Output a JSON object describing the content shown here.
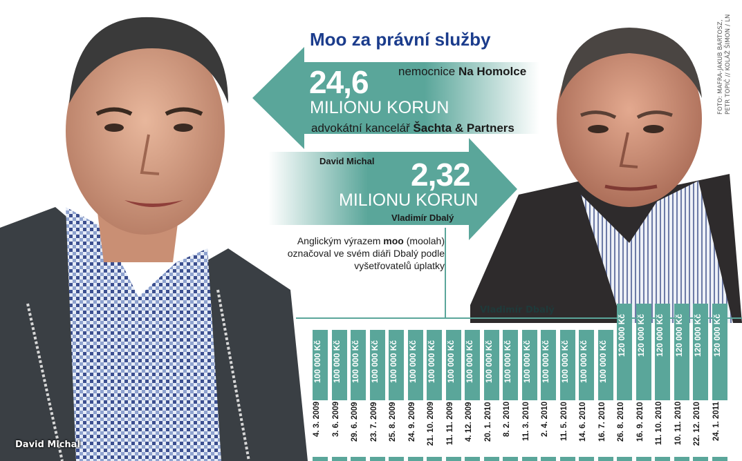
{
  "title": "Moo za právní služby",
  "credit_line1": "FOTO: MAFRA-JAKUB BARTOSZ,",
  "credit_line2": "PETR TOPIČ // KOLÁŽ ŠIMON / LN",
  "flow_top": {
    "amount": "24,6",
    "unit": "MILIONU KORUN",
    "from_prefix": "nemocnice ",
    "from_name": "Na Homolce",
    "to_prefix": "advokátní kancelář ",
    "to_name": "Šachta & Partners"
  },
  "flow_bottom": {
    "amount": "2,32",
    "unit": "MILIONU KORUN",
    "from_name": "David Michal",
    "to_name": "Vladimír Dbalý"
  },
  "note": {
    "part1": "Anglickým výrazem ",
    "keyword": "moo",
    "part2": " (moolah) označoval ve svém diáři Dbalý podle vyšetřovatelů úplatky"
  },
  "captions": {
    "left": "David Michal",
    "right": "Vladimír Dbalý"
  },
  "colors": {
    "teal": "#5aa69a",
    "title_blue": "#1b3c8c"
  },
  "payments": [
    {
      "date": "4. 3. 2009",
      "amount": "100 000 Kč",
      "value": 100000
    },
    {
      "date": "3. 6. 2009",
      "amount": "100 000 Kč",
      "value": 100000
    },
    {
      "date": "29. 6. 2009",
      "amount": "100 000 Kč",
      "value": 100000
    },
    {
      "date": "23. 7. 2009",
      "amount": "100 000 Kč",
      "value": 100000
    },
    {
      "date": "25. 8. 2009",
      "amount": "100 000 Kč",
      "value": 100000
    },
    {
      "date": "24. 9. 2009",
      "amount": "100 000 Kč",
      "value": 100000
    },
    {
      "date": "21. 10. 2009",
      "amount": "100 000 Kč",
      "value": 100000
    },
    {
      "date": "11. 11. 2009",
      "amount": "100 000 Kč",
      "value": 100000
    },
    {
      "date": "4. 12. 2009",
      "amount": "100 000 Kč",
      "value": 100000
    },
    {
      "date": "20. 1. 2010",
      "amount": "100 000 Kč",
      "value": 100000
    },
    {
      "date": "8. 2. 2010",
      "amount": "100 000 Kč",
      "value": 100000
    },
    {
      "date": "11. 3. 2010",
      "amount": "100 000 Kč",
      "value": 100000
    },
    {
      "date": "2. 4. 2010",
      "amount": "100 000 Kč",
      "value": 100000
    },
    {
      "date": "11. 5. 2010",
      "amount": "100 000 Kč",
      "value": 100000
    },
    {
      "date": "14. 6. 2010",
      "amount": "100 000 Kč",
      "value": 100000
    },
    {
      "date": "16. 7. 2010",
      "amount": "100 000 Kč",
      "value": 100000
    },
    {
      "date": "26. 8. 2010",
      "amount": "120 000 Kč",
      "value": 120000
    },
    {
      "date": "16. 9. 2010",
      "amount": "120 000 Kč",
      "value": 120000
    },
    {
      "date": "11. 10. 2010",
      "amount": "120 000 Kč",
      "value": 120000
    },
    {
      "date": "10. 11. 2010",
      "amount": "120 000 Kč",
      "value": 120000
    },
    {
      "date": "22. 12. 2010",
      "amount": "120 000 Kč",
      "value": 120000
    },
    {
      "date": "24. 1. 2011",
      "amount": "120 000 Kč",
      "value": 120000
    }
  ]
}
